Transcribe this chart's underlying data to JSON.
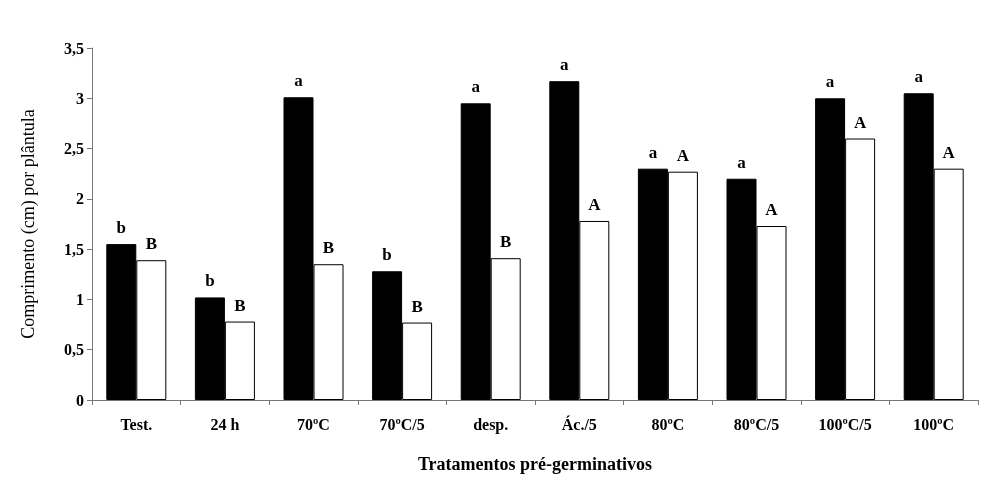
{
  "chart_data": {
    "type": "bar",
    "xlabel": "Tratamentos pré-germinativos",
    "ylabel": "Comprimento (cm) por plântula",
    "categories": [
      "Test.",
      "24 h",
      "70ºC",
      "70ºC/5",
      "desp.",
      "Ác./5",
      "80ºC",
      "80ºC/5",
      "100ºC/5",
      "100ºC"
    ],
    "series": [
      {
        "color": "#000000",
        "values": [
          1.55,
          1.02,
          3.01,
          1.28,
          2.95,
          3.17,
          2.3,
          2.2,
          3.0,
          3.05
        ],
        "value_labels": [
          "b",
          "b",
          "a",
          "b",
          "a",
          "a",
          "a",
          "a",
          "a",
          "a"
        ]
      },
      {
        "color": "#ffffff",
        "values": [
          1.39,
          0.78,
          1.35,
          0.77,
          1.41,
          1.78,
          2.27,
          1.73,
          2.6,
          2.3
        ],
        "value_labels": [
          "B",
          "B",
          "B",
          "B",
          "B",
          "A",
          "A",
          "A",
          "A",
          "A"
        ]
      }
    ],
    "ylim": [
      0,
      3.5
    ],
    "yticks": [
      0,
      {
        "value": 0.5,
        "label": "0,5"
      },
      1,
      {
        "value": 1.5,
        "label": "1,5"
      },
      2,
      {
        "value": 2.5,
        "label": "2,5"
      },
      3,
      {
        "value": 3.5,
        "label": "3,5"
      }
    ],
    "grid": false
  }
}
